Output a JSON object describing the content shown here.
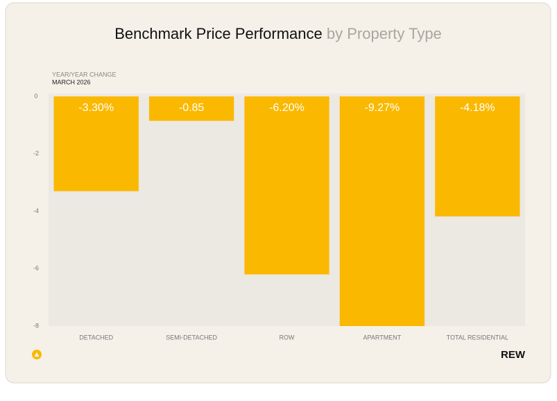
{
  "chart_data": {
    "type": "bar",
    "title": "Benchmark Price Performance",
    "title_suffix": "by Property Type",
    "subtitle": "YEAR/YEAR CHANGE",
    "date": "MARCH 2026",
    "categories": [
      "DETACHED",
      "SEMI-DETACHED",
      "ROW",
      "APARTMENT",
      "TOTAL RESIDENTIAL"
    ],
    "values": [
      -3.3,
      -0.85,
      -6.2,
      -9.27,
      -4.18
    ],
    "value_labels": [
      "-3.30%",
      "-0.85",
      "-6.20%",
      "-9.27%",
      "-4.18%"
    ],
    "color": "#fbb800",
    "ylim": [
      -8,
      0
    ],
    "yticks": [
      0,
      -2,
      -4,
      -6,
      -8
    ],
    "grid": false,
    "brand": "REW"
  }
}
